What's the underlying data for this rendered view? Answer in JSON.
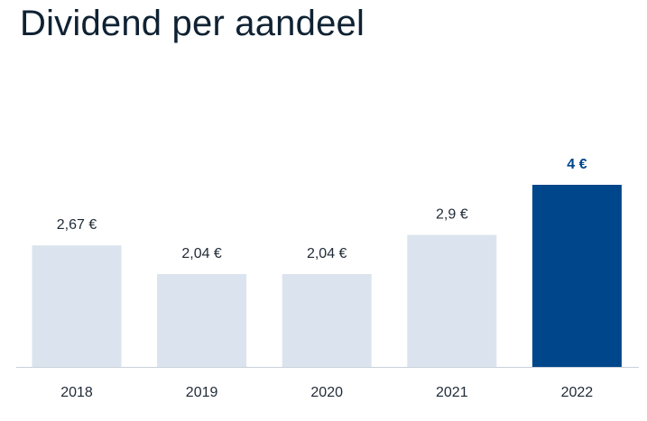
{
  "chart_data": {
    "type": "bar",
    "title": "Dividend per aandeel",
    "categories": [
      "2018",
      "2019",
      "2020",
      "2021",
      "2022"
    ],
    "values": [
      2.67,
      2.04,
      2.04,
      2.9,
      4
    ],
    "value_labels": [
      "2,67 €",
      "2,04 €",
      "2,04 €",
      "2,9 €",
      "4 €"
    ],
    "ylim": [
      0,
      4
    ],
    "highlight_index": 4,
    "grid": false,
    "colors": {
      "bar": "#dbe4ee",
      "highlight_bar": "#00468b",
      "highlight_label": "#00468b",
      "axis": "#c9d1da"
    }
  }
}
